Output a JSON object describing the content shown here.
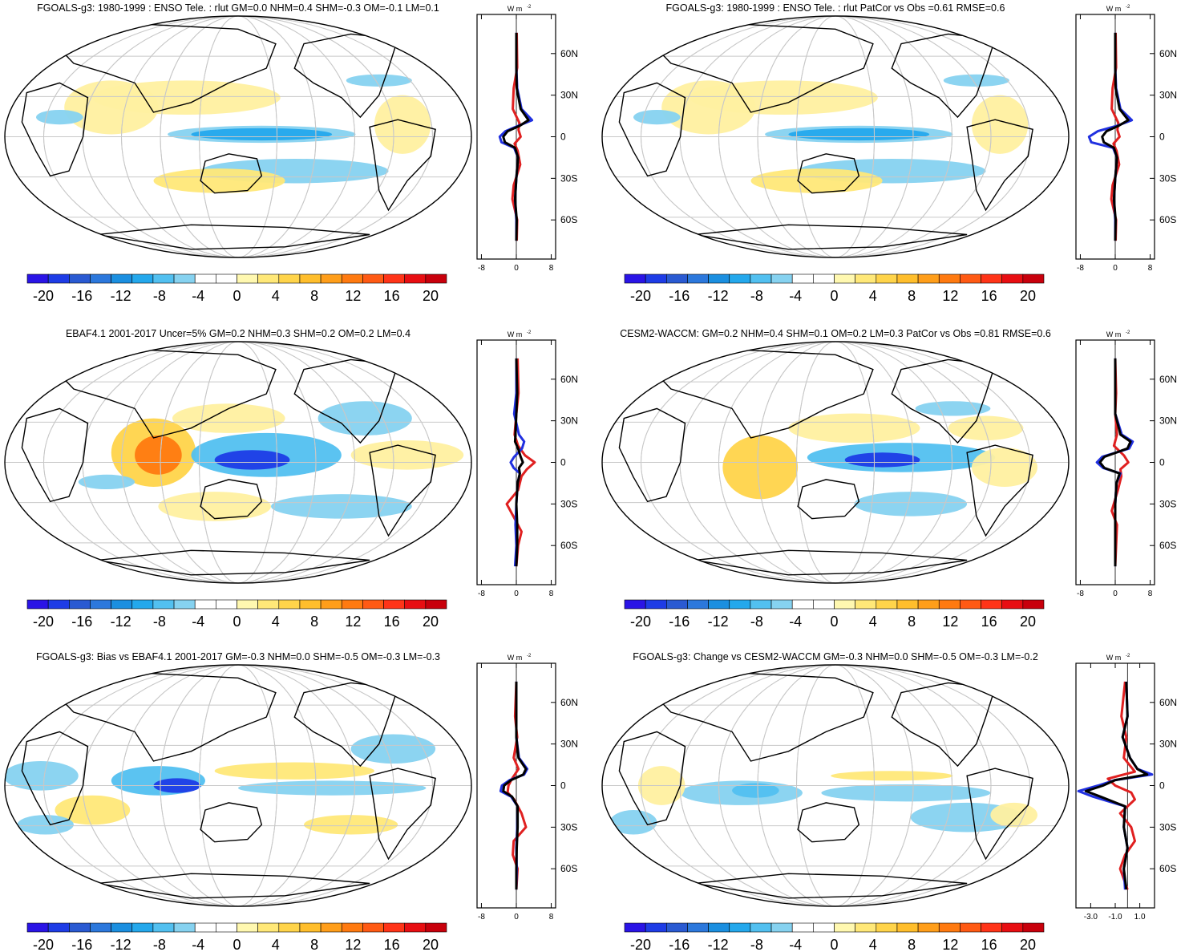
{
  "colors": {
    "colorbar": [
      "#2a14e6",
      "#1e3ce6",
      "#2a5ad2",
      "#2c78dc",
      "#1b8fe0",
      "#24a8ec",
      "#52c0f0",
      "#86d2f0",
      "#ffffff",
      "#ffffff",
      "#fff8b0",
      "#ffe878",
      "#ffd44a",
      "#ffbe2c",
      "#ff9e1a",
      "#ff7a10",
      "#ff5a14",
      "#ff3418",
      "#e80e12",
      "#c8000c"
    ],
    "model": "#e02020",
    "obs": "#2030e0",
    "diff": "#000000"
  },
  "chart_data": [
    {
      "type": "heatmap",
      "title": "FGOALS-g3: 1980-1999 : ENSO Tele. : rlut GM=0.0 NHM=0.4 SHM=-0.3 OM=-0.1 LM=0.1",
      "colorbar_ticks": [
        "-20",
        "-16",
        "-12",
        "-8",
        "-4",
        "0",
        "4",
        "8",
        "12",
        "16",
        "20"
      ],
      "zonal": {
        "unit_top": "W m",
        "unit_sup": "-2",
        "lat_ticks": [
          "60N",
          "30N",
          "0",
          "30S",
          "60S"
        ],
        "x_ticks": [
          "-8",
          "0",
          "8"
        ],
        "xlim": [
          -9,
          9
        ],
        "series": [
          {
            "color": "red",
            "lat": [
              -75,
              -60,
              -45,
              -35,
              -20,
              -10,
              -5,
              0,
              5,
              10,
              20,
              35,
              50,
              75
            ],
            "values": [
              0.1,
              0.2,
              -0.9,
              -0.6,
              0.9,
              0.3,
              -0.4,
              1.0,
              0.5,
              0.7,
              -0.8,
              -0.6,
              0.2,
              0.1
            ]
          },
          {
            "color": "blue",
            "lat": [
              -75,
              -60,
              -45,
              -30,
              -15,
              -8,
              -4,
              0,
              4,
              8,
              12,
              20,
              35,
              50,
              75
            ],
            "values": [
              0,
              0,
              -0.3,
              0,
              0.4,
              -0.5,
              -3.4,
              -3.8,
              -2.5,
              0.5,
              3.6,
              1.2,
              0.2,
              0,
              0
            ]
          },
          {
            "color": "black",
            "lat": [
              -75,
              -60,
              -45,
              -30,
              -15,
              -8,
              -4,
              0,
              4,
              8,
              12,
              20,
              35,
              50,
              75
            ],
            "values": [
              0,
              0.1,
              -0.3,
              0,
              0.4,
              -0.3,
              -2.6,
              -3.0,
              -2.0,
              0.8,
              2.8,
              1.0,
              0.1,
              0,
              0
            ]
          }
        ]
      }
    },
    {
      "type": "heatmap",
      "title": "FGOALS-g3: 1980-1999 : ENSO Tele. : rlut PatCor vs Obs =0.61 RMSE=0.6",
      "colorbar_ticks": [
        "-20",
        "-16",
        "-12",
        "-8",
        "-4",
        "0",
        "4",
        "8",
        "12",
        "16",
        "20"
      ],
      "zonal": {
        "unit_top": "W m",
        "unit_sup": "-2",
        "lat_ticks": [
          "60N",
          "30N",
          "0",
          "30S",
          "60S"
        ],
        "x_ticks": [
          "-8",
          "0",
          "8"
        ],
        "xlim": [
          -9,
          9
        ],
        "series": [
          {
            "color": "red",
            "lat": [
              -75,
              -60,
              -45,
              -35,
              -20,
              -10,
              -5,
              0,
              5,
              10,
              20,
              35,
              50,
              75
            ],
            "values": [
              0.1,
              0.2,
              -0.9,
              -0.6,
              0.9,
              0.3,
              -0.4,
              1.0,
              0.5,
              0.7,
              -0.8,
              -0.6,
              0.2,
              0.1
            ]
          },
          {
            "color": "blue",
            "lat": [
              -75,
              -60,
              -45,
              -30,
              -15,
              -8,
              -4,
              0,
              4,
              8,
              12,
              20,
              35,
              50,
              75
            ],
            "values": [
              0,
              0,
              -0.3,
              0,
              0.4,
              -0.5,
              -5.5,
              -6.0,
              -4.0,
              0.5,
              3.8,
              1.2,
              0.2,
              0,
              0
            ]
          },
          {
            "color": "black",
            "lat": [
              -75,
              -60,
              -45,
              -30,
              -15,
              -8,
              -4,
              0,
              4,
              8,
              12,
              20,
              35,
              50,
              75
            ],
            "values": [
              0,
              0.1,
              -0.3,
              0,
              0.4,
              -0.3,
              -2.6,
              -3.0,
              -2.0,
              0.8,
              3.0,
              1.0,
              0.1,
              0,
              0
            ]
          }
        ]
      }
    },
    {
      "type": "heatmap",
      "title": "EBAF4.1 2001-2017 Uncer=5% GM=0.2 NHM=0.3 SHM=0.2 OM=0.2 LM=0.4",
      "colorbar_ticks": [
        "-20",
        "-16",
        "-12",
        "-8",
        "-4",
        "0",
        "4",
        "8",
        "12",
        "16",
        "20"
      ],
      "zonal": {
        "unit_top": "W m",
        "unit_sup": "-2",
        "lat_ticks": [
          "60N",
          "30N",
          "0",
          "30S",
          "60S"
        ],
        "x_ticks": [
          "-8",
          "0",
          "8"
        ],
        "xlim": [
          -9,
          9
        ],
        "series": [
          {
            "color": "red",
            "lat": [
              -75,
              -60,
              -50,
              -40,
              -30,
              -20,
              -10,
              -5,
              0,
              5,
              12,
              20,
              35,
              50,
              75
            ],
            "values": [
              0,
              0.4,
              1.2,
              -0.5,
              -2.2,
              0.4,
              1.2,
              2.4,
              4.2,
              2.0,
              0.4,
              -0.4,
              0,
              0.5,
              0.3
            ]
          },
          {
            "color": "blue",
            "lat": [
              -75,
              -60,
              -45,
              -30,
              -15,
              -8,
              -4,
              0,
              4,
              10,
              15,
              20,
              35,
              50,
              75
            ],
            "values": [
              -0.3,
              0,
              -0.2,
              0,
              0.3,
              0.8,
              -0.6,
              -1.3,
              -0.5,
              1.3,
              1.8,
              0.6,
              -0.5,
              0,
              0
            ]
          },
          {
            "color": "black",
            "lat": [
              -75,
              -60,
              -45,
              -30,
              -15,
              -8,
              -4,
              0,
              4,
              10,
              15,
              20,
              35,
              50,
              75
            ],
            "values": [
              0,
              0.2,
              0.2,
              0,
              0.3,
              0.8,
              0.6,
              1.5,
              1.0,
              0.4,
              -0.3,
              -0.2,
              0,
              0.2,
              0
            ]
          }
        ]
      }
    },
    {
      "type": "heatmap",
      "title": "CESM2-WACCM: GM=0.2 NHM=0.4 SHM=0.1 OM=0.2 LM=0.3 PatCor vs Obs =0.81 RMSE=0.6",
      "colorbar_ticks": [
        "-20",
        "-16",
        "-12",
        "-8",
        "-4",
        "0",
        "4",
        "8",
        "12",
        "16",
        "20"
      ],
      "zonal": {
        "unit_top": "W m",
        "unit_sup": "-2",
        "lat_ticks": [
          "60N",
          "30N",
          "0",
          "30S",
          "60S"
        ],
        "x_ticks": [
          "-8",
          "0",
          "8"
        ],
        "xlim": [
          -9,
          9
        ],
        "series": [
          {
            "color": "red",
            "lat": [
              -75,
              -60,
              -45,
              -35,
              -20,
              -10,
              -5,
              0,
              5,
              12,
              20,
              35,
              50,
              75
            ],
            "values": [
              0,
              0.2,
              0.4,
              -0.8,
              0.6,
              1.4,
              1.2,
              3.0,
              2.0,
              -0.3,
              0.4,
              0,
              0.2,
              0
            ]
          },
          {
            "color": "blue",
            "lat": [
              -75,
              -60,
              -45,
              -30,
              -15,
              -8,
              -4,
              0,
              4,
              10,
              15,
              20,
              35,
              50,
              75
            ],
            "values": [
              0,
              0,
              0,
              0,
              0.3,
              1.2,
              -2.8,
              -4.2,
              -3.0,
              3.2,
              4.0,
              1.5,
              0,
              0,
              0
            ]
          },
          {
            "color": "black",
            "lat": [
              -75,
              -60,
              -45,
              -30,
              -15,
              -8,
              -4,
              0,
              4,
              10,
              15,
              20,
              35,
              50,
              75
            ],
            "values": [
              0,
              0,
              0,
              0,
              0.3,
              1.0,
              -2.5,
              -3.5,
              -2.5,
              2.8,
              3.5,
              1.2,
              0,
              0,
              0
            ]
          }
        ]
      }
    },
    {
      "type": "heatmap",
      "title": "FGOALS-g3: Bias vs EBAF4.1 2001-2017 GM=-0.3 NHM=0.0 SHM=-0.5 OM=-0.3 LM=-0.3",
      "colorbar_ticks": [
        "-20",
        "-16",
        "-12",
        "-8",
        "-4",
        "0",
        "4",
        "8",
        "12",
        "16",
        "20"
      ],
      "zonal": {
        "unit_top": "W m",
        "unit_sup": "-2",
        "lat_ticks": [
          "60N",
          "30N",
          "0",
          "30S",
          "60S"
        ],
        "x_ticks": [
          "-8",
          "0",
          "8"
        ],
        "xlim": [
          -9,
          9
        ],
        "series": [
          {
            "color": "red",
            "lat": [
              -75,
              -60,
              -50,
              -40,
              -30,
              -20,
              -10,
              -5,
              0,
              5,
              12,
              20,
              35,
              50,
              75
            ],
            "values": [
              0,
              0.3,
              -0.8,
              -0.6,
              2.2,
              1.2,
              -0.5,
              -2.0,
              -1.8,
              -1.0,
              0.5,
              -0.6,
              0.2,
              -0.3,
              0
            ]
          },
          {
            "color": "blue",
            "lat": [
              -75,
              -60,
              -45,
              -30,
              -15,
              -8,
              -4,
              0,
              4,
              8,
              12,
              20,
              35,
              50,
              75
            ],
            "values": [
              0,
              0.1,
              0,
              0.2,
              0.3,
              -1.2,
              -3.6,
              -3.3,
              -1.5,
              1.8,
              2.5,
              0.6,
              0,
              0,
              0
            ]
          },
          {
            "color": "black",
            "lat": [
              -75,
              -60,
              -45,
              -30,
              -15,
              -8,
              -4,
              0,
              4,
              8,
              12,
              20,
              35,
              50,
              75
            ],
            "values": [
              0,
              0,
              0.1,
              0.3,
              0.3,
              -1.0,
              -3.0,
              -2.8,
              -1.2,
              1.6,
              2.2,
              0.5,
              0,
              0,
              0
            ]
          }
        ]
      }
    },
    {
      "type": "heatmap",
      "title": "FGOALS-g3: Change vs CESM2-WACCM GM=-0.3 NHM=0.0 SHM=-0.5 OM=-0.3 LM=-0.2",
      "colorbar_ticks": [
        "-20",
        "-16",
        "-12",
        "-8",
        "-4",
        "0",
        "4",
        "8",
        "12",
        "16",
        "20"
      ],
      "zonal": {
        "unit_top": "W m",
        "unit_sup": "-2",
        "lat_ticks": [
          "60N",
          "30N",
          "0",
          "30S",
          "60S"
        ],
        "x_ticks": [
          "-3.0",
          "-1.0",
          "1.0"
        ],
        "xlim": [
          -4.2,
          2.2
        ],
        "series": [
          {
            "color": "red",
            "lat": [
              -75,
              -60,
              -50,
              -40,
              -30,
              -20,
              -10,
              -5,
              0,
              5,
              10,
              20,
              35,
              50,
              75
            ],
            "values": [
              0,
              -0.6,
              -0.2,
              0.6,
              0.3,
              -0.6,
              0.6,
              0.3,
              -1.0,
              -1.6,
              0.6,
              -0.3,
              -0.1,
              -0.5,
              -0.2
            ]
          },
          {
            "color": "blue",
            "lat": [
              -75,
              -60,
              -45,
              -30,
              -15,
              -8,
              -4,
              0,
              4,
              8,
              12,
              20,
              35,
              50,
              75
            ],
            "values": [
              -0.2,
              -0.3,
              0,
              -0.3,
              -0.2,
              -2.8,
              -4.0,
              -2.4,
              -1.0,
              2.0,
              0.8,
              0.2,
              -0.4,
              0,
              -0.1
            ]
          },
          {
            "color": "black",
            "lat": [
              -75,
              -60,
              -45,
              -30,
              -15,
              -8,
              -4,
              0,
              4,
              8,
              12,
              20,
              35,
              50,
              75
            ],
            "values": [
              -0.1,
              -0.3,
              0,
              -0.3,
              -0.2,
              -2.2,
              -3.4,
              -2.0,
              -1.0,
              1.6,
              0.8,
              0.2,
              -0.4,
              0,
              -0.1
            ]
          }
        ]
      }
    }
  ]
}
